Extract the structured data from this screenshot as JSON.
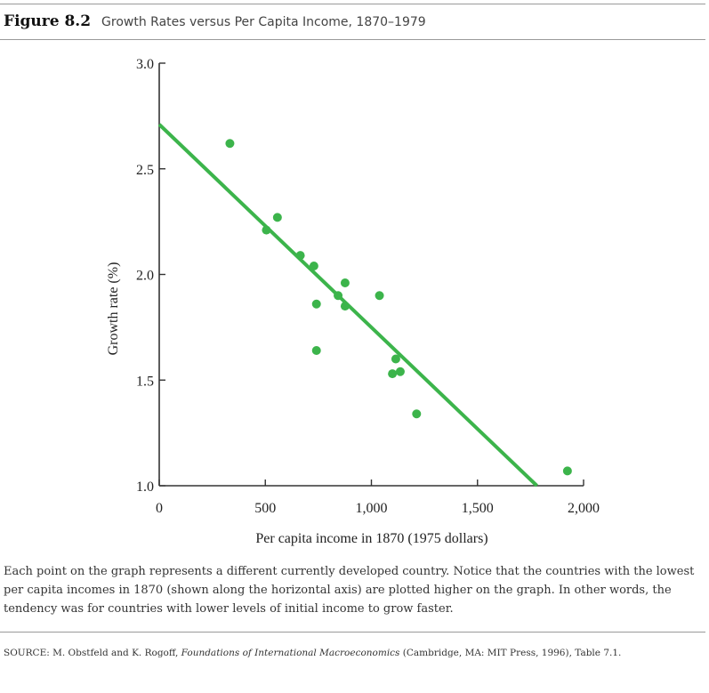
{
  "figure": {
    "number": "Figure 8.2",
    "title": "Growth Rates versus Per Capita Income, 1870–1979"
  },
  "caption": "Each point on the graph represents a different currently developed country. Notice that the countries with the lowest per capita incomes in 1870 (shown along the horizontal axis) are plotted higher on the graph. In other words, the tendency was for countries with lower levels of initial income to grow faster.",
  "source": {
    "prefix": "SOURCE: M. Obstfeld and K. Rogoff, ",
    "book": "Foundations of International Macroeconomics",
    "suffix": " (Cambridge, MA: MIT Press, 1996), Table 7.1."
  },
  "colors": {
    "series": "#3cb44b",
    "axis": "#333333",
    "rule": "#9a9a9a"
  },
  "chart_data": {
    "type": "scatter",
    "xlabel": "Per capita income in 1870 (1975 dollars)",
    "ylabel": "Growth rate (%)",
    "xlim": [
      0,
      2000
    ],
    "ylim": [
      1.0,
      3.0
    ],
    "x_ticks": [
      0,
      500,
      1000,
      1500,
      2000
    ],
    "x_tick_labels": [
      "0",
      "500",
      "1,000",
      "1,500",
      "2,000"
    ],
    "y_ticks": [
      1.0,
      1.5,
      2.0,
      2.5,
      3.0
    ],
    "y_tick_labels": [
      "1.0",
      "1.5",
      "2.0",
      "2.5",
      "3.0"
    ],
    "grid": false,
    "points": [
      {
        "x": 333,
        "y": 2.62
      },
      {
        "x": 505,
        "y": 2.21
      },
      {
        "x": 557,
        "y": 2.27
      },
      {
        "x": 665,
        "y": 2.09
      },
      {
        "x": 729,
        "y": 2.04
      },
      {
        "x": 741,
        "y": 1.86
      },
      {
        "x": 741,
        "y": 1.64
      },
      {
        "x": 843,
        "y": 1.9
      },
      {
        "x": 876,
        "y": 1.96
      },
      {
        "x": 876,
        "y": 1.85
      },
      {
        "x": 1038,
        "y": 1.9
      },
      {
        "x": 1099,
        "y": 1.53
      },
      {
        "x": 1115,
        "y": 1.6
      },
      {
        "x": 1136,
        "y": 1.54
      },
      {
        "x": 1213,
        "y": 1.34
      },
      {
        "x": 1924,
        "y": 1.07
      }
    ],
    "fit_line": {
      "x": [
        0,
        1780
      ],
      "y": [
        2.71,
        1.0
      ]
    }
  }
}
